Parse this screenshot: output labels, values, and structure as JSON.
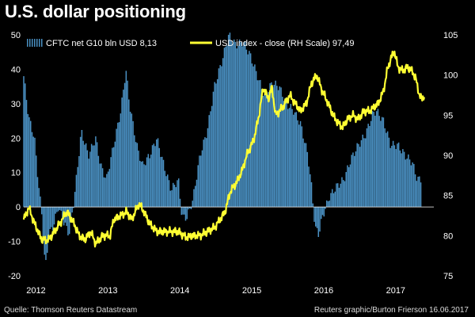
{
  "title": "U.S. dollar positioning",
  "footer": {
    "source": "Quelle: Thomson Reuters Datastream",
    "credit": "Reuters graphic/Burton Frierson 16.06.2017"
  },
  "colors": {
    "background": "#000000",
    "bar": "#4a90c2",
    "line": "#ffff33",
    "text": "#ffffff"
  },
  "chart_data": {
    "type": "bar+line",
    "title": "U.S. dollar positioning",
    "legend": [
      {
        "name": "CFTC net G10 bln USD 8,13",
        "style": "bar",
        "color": "#4a90c2"
      },
      {
        "name": "USD index - close (RH Scale) 97,49",
        "style": "line",
        "color": "#ffff33"
      }
    ],
    "legend_placement": "top",
    "x_ticks": [
      "2012",
      "2013",
      "2014",
      "2015",
      "2016",
      "2017"
    ],
    "x_range": [
      2011.85,
      2017.55
    ],
    "y_left": {
      "range": [
        -20,
        50
      ],
      "ticks": [
        -20,
        -10,
        0,
        10,
        20,
        30,
        40,
        50
      ]
    },
    "y_right": {
      "range": [
        75,
        105
      ],
      "ticks": [
        75,
        80,
        85,
        90,
        95,
        100,
        105
      ]
    },
    "bar_series": {
      "name": "CFTC net G10 bln USD",
      "last": 8.13,
      "points": [
        [
          2011.85,
          38
        ],
        [
          2011.92,
          26
        ],
        [
          2012.0,
          20
        ],
        [
          2012.05,
          8
        ],
        [
          2012.1,
          -2
        ],
        [
          2012.15,
          -18
        ],
        [
          2012.2,
          -8
        ],
        [
          2012.27,
          -5
        ],
        [
          2012.33,
          0
        ],
        [
          2012.4,
          -4
        ],
        [
          2012.48,
          -8
        ],
        [
          2012.55,
          2
        ],
        [
          2012.65,
          22
        ],
        [
          2012.75,
          15
        ],
        [
          2012.85,
          20
        ],
        [
          2012.92,
          12
        ],
        [
          2013.0,
          8
        ],
        [
          2013.1,
          18
        ],
        [
          2013.2,
          28
        ],
        [
          2013.27,
          40
        ],
        [
          2013.32,
          30
        ],
        [
          2013.42,
          18
        ],
        [
          2013.5,
          12
        ],
        [
          2013.6,
          15
        ],
        [
          2013.7,
          20
        ],
        [
          2013.8,
          12
        ],
        [
          2013.9,
          5
        ],
        [
          2014.0,
          8
        ],
        [
          2014.05,
          -3
        ],
        [
          2014.12,
          -3
        ],
        [
          2014.2,
          2
        ],
        [
          2014.3,
          15
        ],
        [
          2014.4,
          22
        ],
        [
          2014.5,
          35
        ],
        [
          2014.6,
          42
        ],
        [
          2014.7,
          50
        ],
        [
          2014.8,
          47
        ],
        [
          2014.9,
          48
        ],
        [
          2015.0,
          44
        ],
        [
          2015.1,
          38
        ],
        [
          2015.2,
          32
        ],
        [
          2015.3,
          36
        ],
        [
          2015.4,
          35
        ],
        [
          2015.5,
          30
        ],
        [
          2015.6,
          28
        ],
        [
          2015.7,
          24
        ],
        [
          2015.8,
          15
        ],
        [
          2015.85,
          6
        ],
        [
          2015.9,
          -6
        ],
        [
          2015.95,
          -8
        ],
        [
          2016.0,
          -3
        ],
        [
          2016.1,
          3
        ],
        [
          2016.2,
          6
        ],
        [
          2016.3,
          8
        ],
        [
          2016.4,
          14
        ],
        [
          2016.5,
          18
        ],
        [
          2016.6,
          21
        ],
        [
          2016.7,
          27
        ],
        [
          2016.75,
          28
        ],
        [
          2016.85,
          25
        ],
        [
          2016.95,
          18
        ],
        [
          2017.05,
          18
        ],
        [
          2017.15,
          15
        ],
        [
          2017.25,
          13
        ],
        [
          2017.32,
          8
        ],
        [
          2017.38,
          8.13
        ]
      ]
    },
    "line_series": {
      "name": "USD index - close (RH Scale)",
      "last": 97.49,
      "points": [
        [
          2011.85,
          82
        ],
        [
          2011.92,
          83.5
        ],
        [
          2012.0,
          81.5
        ],
        [
          2012.1,
          79.5
        ],
        [
          2012.2,
          79.5
        ],
        [
          2012.35,
          81.5
        ],
        [
          2012.45,
          83
        ],
        [
          2012.55,
          81.5
        ],
        [
          2012.62,
          80
        ],
        [
          2012.7,
          79.5
        ],
        [
          2012.78,
          80.5
        ],
        [
          2012.85,
          79
        ],
        [
          2012.95,
          80
        ],
        [
          2013.05,
          80
        ],
        [
          2013.1,
          82
        ],
        [
          2013.2,
          82.5
        ],
        [
          2013.28,
          83
        ],
        [
          2013.35,
          82
        ],
        [
          2013.45,
          84
        ],
        [
          2013.52,
          83
        ],
        [
          2013.6,
          81.5
        ],
        [
          2013.7,
          80.5
        ],
        [
          2013.8,
          80.5
        ],
        [
          2013.9,
          80.5
        ],
        [
          2014.0,
          80.5
        ],
        [
          2014.1,
          79.8
        ],
        [
          2014.2,
          80
        ],
        [
          2014.3,
          80
        ],
        [
          2014.4,
          80.5
        ],
        [
          2014.5,
          81
        ],
        [
          2014.58,
          82
        ],
        [
          2014.65,
          83
        ],
        [
          2014.72,
          85.5
        ],
        [
          2014.8,
          86.5
        ],
        [
          2014.88,
          88
        ],
        [
          2014.95,
          90
        ],
        [
          2015.05,
          92
        ],
        [
          2015.12,
          95
        ],
        [
          2015.18,
          98.5
        ],
        [
          2015.25,
          97
        ],
        [
          2015.3,
          98.5
        ],
        [
          2015.35,
          95
        ],
        [
          2015.45,
          96
        ],
        [
          2015.55,
          97.5
        ],
        [
          2015.62,
          96.5
        ],
        [
          2015.7,
          95.5
        ],
        [
          2015.78,
          96.5
        ],
        [
          2015.85,
          99
        ],
        [
          2015.92,
          100
        ],
        [
          2016.0,
          98
        ],
        [
          2016.08,
          96.5
        ],
        [
          2016.15,
          95
        ],
        [
          2016.22,
          94
        ],
        [
          2016.28,
          93.5
        ],
        [
          2016.35,
          94.5
        ],
        [
          2016.42,
          95
        ],
        [
          2016.5,
          94.5
        ],
        [
          2016.58,
          95.5
        ],
        [
          2016.65,
          95.5
        ],
        [
          2016.72,
          96
        ],
        [
          2016.78,
          96.5
        ],
        [
          2016.85,
          98
        ],
        [
          2016.9,
          100.5
        ],
        [
          2016.95,
          102
        ],
        [
          2017.0,
          103
        ],
        [
          2017.05,
          101
        ],
        [
          2017.12,
          100.5
        ],
        [
          2017.18,
          101
        ],
        [
          2017.25,
          100.5
        ],
        [
          2017.3,
          99.5
        ],
        [
          2017.35,
          97.5
        ],
        [
          2017.38,
          97
        ],
        [
          2017.42,
          97.49
        ]
      ]
    }
  }
}
